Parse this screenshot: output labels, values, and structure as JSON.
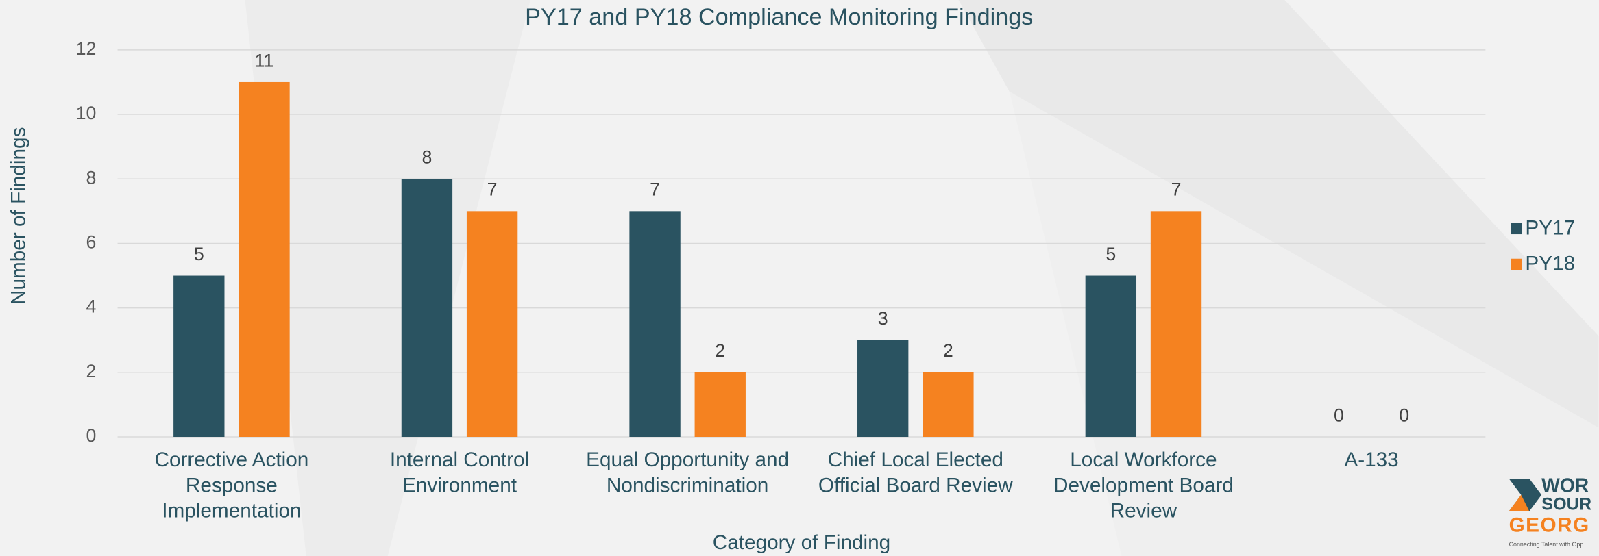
{
  "chart_data": {
    "type": "bar",
    "title": "PY17 and PY18 Compliance Monitoring Findings",
    "x_label": "Category of Finding",
    "y_label": "Number of Findings",
    "categories": [
      "Corrective Action Response Implementation",
      "Internal Control Environment",
      "Equal Opportunity and Nondiscrimination",
      "Chief Local Elected Official Board Review",
      "Local Workforce Development Board Review",
      "A-133"
    ],
    "series": [
      {
        "name": "PY17",
        "color": "#2a5361",
        "values": [
          5,
          8,
          7,
          3,
          5,
          0
        ]
      },
      {
        "name": "PY18",
        "color": "#f58220",
        "values": [
          11,
          7,
          2,
          2,
          7,
          0
        ]
      }
    ],
    "ylim": [
      0,
      12
    ],
    "yticks": [
      0,
      2,
      4,
      6,
      8,
      10,
      12
    ],
    "grid": true,
    "legend": "right"
  },
  "logo": {
    "line1": "WOR",
    "line2": "SOUR",
    "line3": "GEORG",
    "tagline": "Connecting Talent with Opp"
  }
}
